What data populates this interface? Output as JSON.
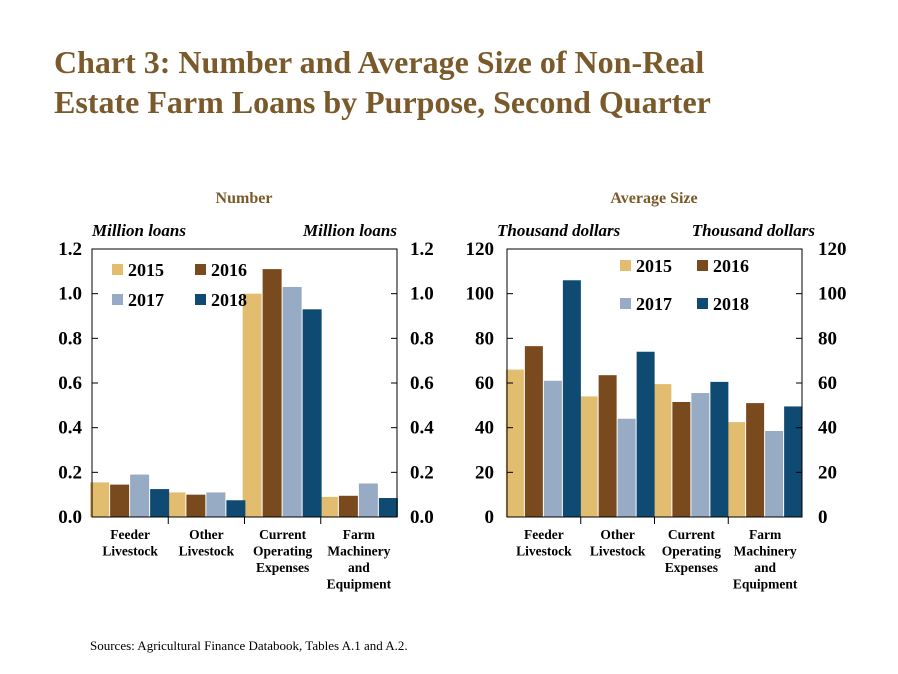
{
  "page": {
    "title_line1": "Chart 3: Number and Average Size of Non-Real",
    "title_line2": "Estate Farm Loans by Purpose, Second Quarter",
    "source": "Sources: Agricultural Finance Databook, Tables A.1 and A.2."
  },
  "colors": {
    "2015": "#e2bc6f",
    "2016": "#7a4a1f",
    "2017": "#97abc4",
    "2018": "#0f4a73",
    "title": "#7a5a2b"
  },
  "chart_data": [
    {
      "type": "bar",
      "title": "Number",
      "ylabel_left": "Million loans",
      "ylabel_right": "Million loans",
      "ylim": [
        0,
        1.2
      ],
      "yticks": [
        "0.0",
        "0.2",
        "0.4",
        "0.6",
        "0.8",
        "1.0",
        "1.2"
      ],
      "categories": [
        [
          "Feeder",
          "Livestock"
        ],
        [
          "Other",
          "Livestock"
        ],
        [
          "Current",
          "Operating",
          "Expenses"
        ],
        [
          "Farm",
          "Machinery",
          "and",
          "Equipment"
        ]
      ],
      "legend": [
        "2015",
        "2016",
        "2017",
        "2018"
      ],
      "legend_position": "top-left",
      "series": [
        {
          "name": "2015",
          "values": [
            0.155,
            0.11,
            1.0,
            0.09
          ]
        },
        {
          "name": "2016",
          "values": [
            0.145,
            0.1,
            1.11,
            0.095
          ]
        },
        {
          "name": "2017",
          "values": [
            0.19,
            0.11,
            1.03,
            0.15
          ]
        },
        {
          "name": "2018",
          "values": [
            0.125,
            0.075,
            0.93,
            0.085
          ]
        }
      ]
    },
    {
      "type": "bar",
      "title": "Average Size",
      "ylabel_left": "Thousand dollars",
      "ylabel_right": "Thousand dollars",
      "ylim": [
        0,
        120
      ],
      "yticks": [
        "0",
        "20",
        "40",
        "60",
        "80",
        "100",
        "120"
      ],
      "categories": [
        [
          "Feeder",
          "Livestock"
        ],
        [
          "Other",
          "Livestock"
        ],
        [
          "Current",
          "Operating",
          "Expenses"
        ],
        [
          "Farm",
          "Machinery",
          "and",
          "Equipment"
        ]
      ],
      "legend": [
        "2015",
        "2016",
        "2017",
        "2018"
      ],
      "legend_position": "top-right",
      "series": [
        {
          "name": "2015",
          "values": [
            66,
            54,
            59.5,
            42.5
          ]
        },
        {
          "name": "2016",
          "values": [
            76.5,
            63.5,
            51.5,
            51
          ]
        },
        {
          "name": "2017",
          "values": [
            61,
            44,
            55.5,
            38.5
          ]
        },
        {
          "name": "2018",
          "values": [
            106,
            74,
            60.5,
            49.5
          ]
        }
      ]
    }
  ]
}
